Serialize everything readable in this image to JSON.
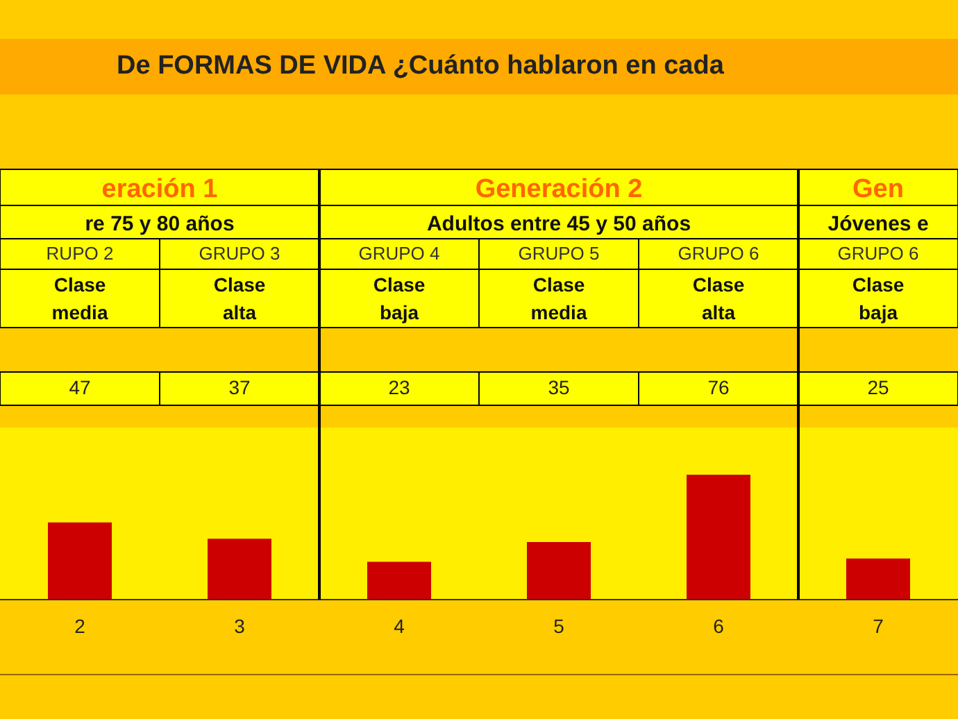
{
  "chart_data": {
    "type": "bar",
    "title": "De FORMAS DE VIDA  ¿Cuánto hablaron en cada",
    "categories": [
      "2",
      "3",
      "4",
      "5",
      "6",
      "7"
    ],
    "values": [
      47,
      37,
      23,
      35,
      76,
      25
    ],
    "color": "#cc0000",
    "data_labels": true,
    "annotations": [
      "eración 1",
      "Generación 2",
      "Gen",
      "re  75 y 80 años",
      "Adultos entre  45 y 50 años",
      "Jóvenes e",
      "RUPO 2",
      "GRUPO 3",
      "GRUPO 4",
      "GRUPO 5",
      "GRUPO 6",
      "GRUPO 6",
      "Clase media",
      "Clase alta",
      "Clase baja",
      "Clase media",
      "Clase alta",
      "Clase baja"
    ]
  }
}
